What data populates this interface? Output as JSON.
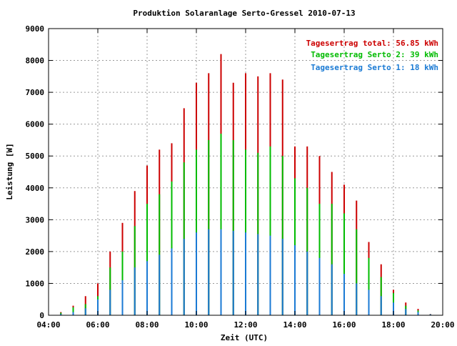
{
  "chart_data": {
    "type": "bar",
    "stacked": true,
    "title": "Produktion Solaranlage Serto-Gressel 2010-07-13",
    "xlabel": "Zeit (UTC)",
    "ylabel": "Leistung [W]",
    "xlim": [
      "04:00",
      "20:00"
    ],
    "ylim": [
      0,
      9000
    ],
    "x_ticks": [
      "04:00",
      "06:00",
      "08:00",
      "10:00",
      "12:00",
      "14:00",
      "16:00",
      "18:00",
      "20:00"
    ],
    "y_ticks": [
      0,
      1000,
      2000,
      3000,
      4000,
      5000,
      6000,
      7000,
      8000,
      9000
    ],
    "grid": true,
    "legend_position": "top-right",
    "legend": [
      {
        "text": "Tagesertrag total: 56.85 kWh",
        "color": "#cc0000"
      },
      {
        "text": "Tagesertrag Serto 2: 39 kWh",
        "color": "#00bb00"
      },
      {
        "text": "Tagesertrag Serto 1: 18 kWh",
        "color": "#1a7ad4"
      }
    ],
    "series": [
      {
        "color": "#1a7ad4",
        "points": [
          [
            "04:30",
            40
          ],
          [
            "05:00",
            100
          ],
          [
            "05:30",
            220
          ],
          [
            "06:00",
            500
          ],
          [
            "06:30",
            800
          ],
          [
            "07:00",
            1100
          ],
          [
            "07:30",
            1500
          ],
          [
            "08:00",
            1700
          ],
          [
            "08:30",
            1900
          ],
          [
            "09:00",
            2100
          ],
          [
            "09:30",
            2400
          ],
          [
            "10:00",
            2600
          ],
          [
            "10:30",
            2700
          ],
          [
            "11:00",
            2700
          ],
          [
            "11:30",
            2650
          ],
          [
            "12:00",
            2600
          ],
          [
            "12:30",
            2550
          ],
          [
            "13:00",
            2500
          ],
          [
            "13:30",
            2400
          ],
          [
            "14:00",
            2200
          ],
          [
            "14:30",
            2000
          ],
          [
            "15:00",
            1800
          ],
          [
            "15:30",
            1600
          ],
          [
            "16:00",
            1300
          ],
          [
            "16:30",
            1000
          ],
          [
            "17:00",
            800
          ],
          [
            "17:30",
            600
          ],
          [
            "18:00",
            400
          ],
          [
            "18:30",
            200
          ],
          [
            "19:00",
            100
          ],
          [
            "19:30",
            30
          ]
        ]
      },
      {
        "color": "#00bb00",
        "points": [
          [
            "04:30",
            80
          ],
          [
            "05:00",
            250
          ],
          [
            "05:30",
            350
          ],
          [
            "06:00",
            600
          ],
          [
            "06:30",
            1500
          ],
          [
            "07:00",
            2000
          ],
          [
            "07:30",
            2800
          ],
          [
            "08:00",
            3500
          ],
          [
            "08:30",
            3800
          ],
          [
            "09:00",
            4200
          ],
          [
            "09:30",
            4800
          ],
          [
            "10:00",
            5200
          ],
          [
            "10:30",
            5500
          ],
          [
            "11:00",
            5700
          ],
          [
            "11:30",
            5500
          ],
          [
            "12:00",
            5200
          ],
          [
            "12:30",
            5100
          ],
          [
            "13:00",
            5300
          ],
          [
            "13:30",
            5000
          ],
          [
            "14:00",
            4300
          ],
          [
            "14:30",
            4000
          ],
          [
            "15:00",
            3500
          ],
          [
            "15:30",
            3500
          ],
          [
            "16:00",
            3200
          ],
          [
            "16:30",
            2700
          ],
          [
            "17:00",
            1800
          ],
          [
            "17:30",
            1200
          ],
          [
            "18:00",
            700
          ],
          [
            "18:30",
            300
          ],
          [
            "19:00",
            150
          ],
          [
            "19:30",
            30
          ]
        ]
      },
      {
        "color": "#cc0000",
        "points": [
          [
            "04:30",
            100
          ],
          [
            "05:00",
            300
          ],
          [
            "05:30",
            600
          ],
          [
            "06:00",
            1000
          ],
          [
            "06:30",
            2000
          ],
          [
            "07:00",
            2900
          ],
          [
            "07:30",
            3900
          ],
          [
            "08:00",
            4700
          ],
          [
            "08:30",
            5200
          ],
          [
            "09:00",
            5400
          ],
          [
            "09:30",
            6500
          ],
          [
            "10:00",
            7300
          ],
          [
            "10:30",
            7600
          ],
          [
            "11:00",
            8200
          ],
          [
            "11:30",
            7300
          ],
          [
            "12:00",
            7600
          ],
          [
            "12:30",
            7500
          ],
          [
            "13:00",
            7600
          ],
          [
            "13:30",
            7400
          ],
          [
            "14:00",
            5300
          ],
          [
            "14:30",
            5300
          ],
          [
            "15:00",
            5000
          ],
          [
            "15:30",
            4500
          ],
          [
            "16:00",
            4100
          ],
          [
            "16:30",
            3600
          ],
          [
            "17:00",
            2300
          ],
          [
            "17:30",
            1600
          ],
          [
            "18:00",
            800
          ],
          [
            "18:30",
            400
          ],
          [
            "19:00",
            200
          ],
          [
            "19:30",
            40
          ]
        ]
      }
    ]
  }
}
